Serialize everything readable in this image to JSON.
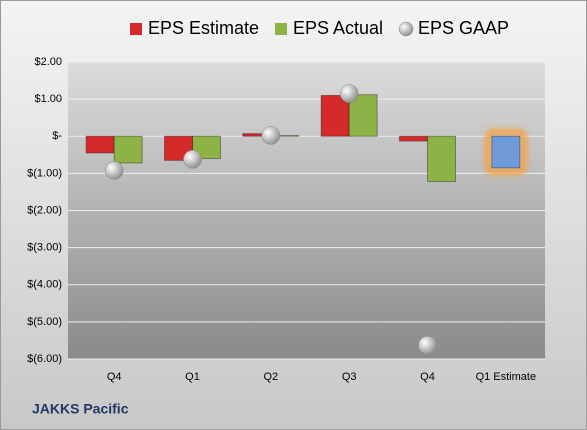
{
  "chart_data": {
    "type": "bar",
    "footer": "JAKKS Pacific",
    "categories": [
      "Q4",
      "Q1",
      "Q2",
      "Q3",
      "Q4",
      "Q1 Estimate"
    ],
    "series": [
      {
        "name": "EPS Estimate",
        "color": "#d42a2a",
        "values": [
          -0.45,
          -0.65,
          0.07,
          1.1,
          -0.13,
          -0.85
        ],
        "highlight_color": "#6f9bd9",
        "highlight_index": 5
      },
      {
        "name": "EPS Actual",
        "color": "#8db347",
        "values": [
          -0.72,
          -0.6,
          0.02,
          1.12,
          -1.22,
          null
        ]
      },
      {
        "name": "EPS GAAP",
        "color": "#a6a6a6",
        "style": "marker",
        "values": [
          -0.92,
          -0.62,
          0.02,
          1.15,
          -5.63,
          null
        ]
      }
    ],
    "ylim": [
      -6,
      2
    ],
    "yticks": [
      {
        "value": 2,
        "label": "$2.00"
      },
      {
        "value": 1,
        "label": "$1.00"
      },
      {
        "value": 0,
        "label": "$-"
      },
      {
        "value": -1,
        "label": "$(1.00)"
      },
      {
        "value": -2,
        "label": "$(2.00)"
      },
      {
        "value": -3,
        "label": "$(3.00)"
      },
      {
        "value": -4,
        "label": "$(4.00)"
      },
      {
        "value": -5,
        "label": "$(5.00)"
      },
      {
        "value": -6,
        "label": "$(6.00)"
      }
    ],
    "grid": true
  }
}
